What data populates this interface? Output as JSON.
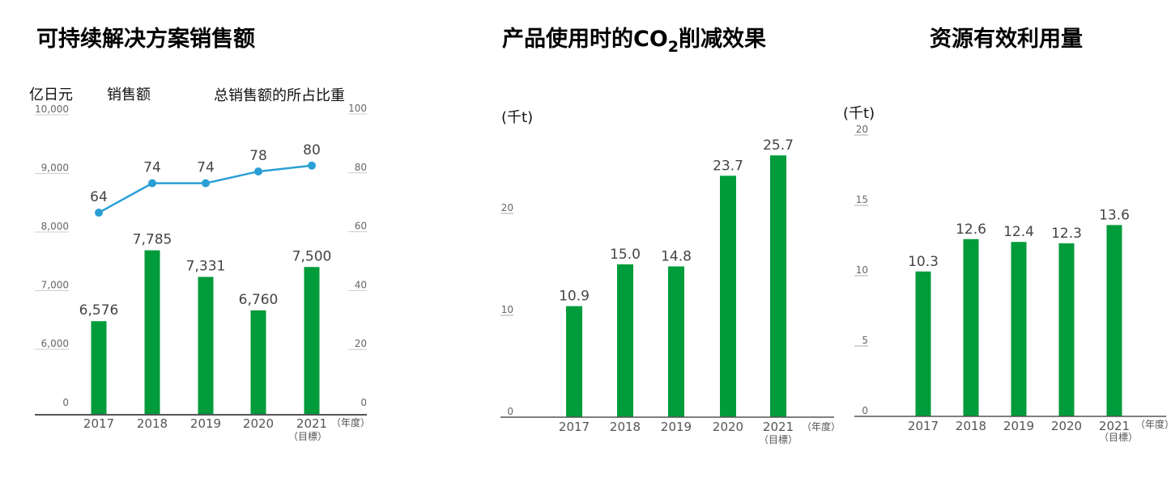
{
  "colors": {
    "bar": "#009b3a",
    "line": "#2a9fd6",
    "axis": "#555555"
  },
  "chart_data": [
    {
      "type": "bar",
      "title": "可持续解决方案销售额",
      "ylabel": "亿日元",
      "series_labels": [
        "销售额",
        "总销售额的所占比重"
      ],
      "x_suffix": "（年度）",
      "target_note": "（目標）",
      "categories": [
        "2017",
        "2018",
        "2019",
        "2020",
        "2021"
      ],
      "yticks": [
        "0",
        "6,000",
        "7,000",
        "8,000",
        "9,000",
        "10,000"
      ],
      "ytick_values": [
        0,
        6000,
        7000,
        8000,
        9000,
        10000
      ],
      "y2ticks": [
        "0",
        "20",
        "40",
        "60",
        "80",
        "100"
      ],
      "y2ticks_values": [
        0,
        20,
        40,
        60,
        80,
        100
      ],
      "ylim": [
        0,
        10000
      ],
      "y_axis_break": "0 to 6,000",
      "y2lim": [
        0,
        100
      ],
      "series": [
        {
          "name": "销售额",
          "type": "bar",
          "values": [
            6576,
            7785,
            7331,
            6760,
            7500
          ],
          "labels": [
            "6,576",
            "7,785",
            "7,331",
            "6,760",
            "7,500"
          ]
        },
        {
          "name": "总销售额的所占比重",
          "type": "line",
          "axis": "right",
          "values": [
            64,
            74,
            74,
            78,
            80
          ],
          "labels": [
            "64",
            "74",
            "74",
            "78",
            "80"
          ]
        }
      ]
    },
    {
      "type": "bar",
      "title_main": "产品使用时的CO",
      "title_sub": "2",
      "title_end": "削减效果",
      "ylabel": "(千t)",
      "x_suffix": "（年度）",
      "target_note": "（目標）",
      "categories": [
        "2017",
        "2018",
        "2019",
        "2020",
        "2021"
      ],
      "yticks": [
        "0",
        "10",
        "20"
      ],
      "ytick_values": [
        0,
        10,
        20
      ],
      "ylim": [
        0,
        28
      ],
      "values": [
        10.9,
        15.0,
        14.8,
        23.7,
        25.7
      ],
      "labels": [
        "10.9",
        "15.0",
        "14.8",
        "23.7",
        "25.7"
      ]
    },
    {
      "type": "bar",
      "title": "资源有效利用量",
      "ylabel": "(千t)",
      "x_suffix": "（年度）",
      "target_note": "（目標）",
      "categories": [
        "2017",
        "2018",
        "2019",
        "2020",
        "2021"
      ],
      "yticks": [
        "0",
        "5",
        "10",
        "15",
        "20"
      ],
      "ytick_values": [
        0,
        5,
        10,
        15,
        20
      ],
      "ylim": [
        0,
        20
      ],
      "values": [
        10.3,
        12.6,
        12.4,
        12.3,
        13.6
      ],
      "labels": [
        "10.3",
        "12.6",
        "12.4",
        "12.3",
        "13.6"
      ]
    }
  ]
}
